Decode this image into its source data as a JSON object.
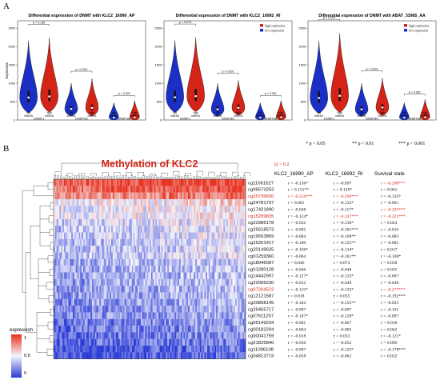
{
  "panel_a_label": "A",
  "panel_b_label": "B",
  "chart_data": [
    {
      "type": "violin",
      "title": "Differential expression of DNMT with KLC2_16990_AP",
      "ylabel": "Expression",
      "yticks": [
        "2500",
        "2000",
        "1500",
        "1000",
        "500",
        "0"
      ],
      "ylim": [
        0,
        2700
      ],
      "categories": [
        "DNMT1",
        "DNMT3A",
        "DNMT3B"
      ],
      "group_labels": [
        "low\nm6EKA",
        "high\nm6EKA"
      ],
      "pvalues": [
        "p = 0.135",
        "p < 0.001",
        "p < 0.001"
      ],
      "legend": [],
      "series": [
        {
          "name": "low",
          "medians": [
            610,
            300,
            70
          ],
          "q1": [
            480,
            240,
            40
          ],
          "q3": [
            790,
            380,
            120
          ]
        },
        {
          "name": "high",
          "medians": [
            640,
            330,
            80
          ],
          "q1": [
            510,
            260,
            50
          ],
          "q3": [
            830,
            420,
            140
          ]
        }
      ]
    },
    {
      "type": "violin",
      "title": "Differential expression of DNMT with KLC2_16992_RI",
      "ylabel": "",
      "yticks": [
        "2500",
        "2000",
        "1500",
        "1000",
        "500",
        "0"
      ],
      "ylim": [
        0,
        2700
      ],
      "categories": [
        "DNMT1",
        "DNMT3A",
        "DNMT3B"
      ],
      "group_labels": [
        "low\nm6EKA",
        "high\nm6EKA"
      ],
      "pvalues": [
        "p = 0.073",
        "p < 0.001",
        "p < 0.001"
      ],
      "legend": [
        "high expression",
        "low expression"
      ],
      "series": [
        {
          "name": "low",
          "medians": [
            620,
            290,
            70
          ],
          "q1": [
            490,
            230,
            40
          ],
          "q3": [
            800,
            370,
            120
          ]
        },
        {
          "name": "high",
          "medians": [
            650,
            330,
            85
          ],
          "q1": [
            520,
            270,
            50
          ],
          "q3": [
            840,
            420,
            140
          ]
        }
      ]
    },
    {
      "type": "violin",
      "title": "Differential expression of DNMT with ABAT_33965_AA",
      "ylabel": "",
      "yticks": [
        "2500",
        "2000",
        "1500",
        "1000",
        "500",
        "0"
      ],
      "ylim": [
        0,
        2700
      ],
      "categories": [
        "DNMT1",
        "DNMT3A",
        "DNMT3B"
      ],
      "group_labels": [
        "low\nm6EKA",
        "high\nm6EKA"
      ],
      "pvalues": [
        "p < 0.001",
        "p < 0.001",
        "p < 0.001"
      ],
      "legend": [
        "high expression",
        "low expression"
      ],
      "series": [
        {
          "name": "low",
          "medians": [
            600,
            290,
            70
          ],
          "q1": [
            470,
            230,
            40
          ],
          "q3": [
            780,
            370,
            120
          ]
        },
        {
          "name": "high",
          "medians": [
            660,
            340,
            85
          ],
          "q1": [
            520,
            270,
            55
          ],
          "q3": [
            860,
            430,
            150
          ]
        }
      ]
    },
    {
      "type": "heatmap",
      "title": "Methylation of KLC2",
      "threshold_label": "|r| > 0.2",
      "significance": [
        "* p < 0.05",
        "** p < 0.01",
        "*** p < 0.001"
      ],
      "colorbar_label": "expression",
      "colorbar_ticks": [
        "1",
        "0.5",
        "0"
      ],
      "column_headers": [
        "KLC2_16990_AP",
        "KLC2_16992_RI",
        "Survival state"
      ],
      "rows": [
        {
          "probe": "cg11661527",
          "highlight": false,
          "r": [
            "r = -0.136*",
            "r = -0.097",
            "r = -0.208***"
          ],
          "red": [
            false,
            false,
            true
          ]
        },
        {
          "probe": "cg06573253",
          "highlight": false,
          "r": [
            "r = 0.151**",
            "r = 0.126*",
            "r = 0.061"
          ],
          "red": [
            false,
            false,
            false
          ]
        },
        {
          "probe": "cg25736830",
          "highlight": true,
          "r": [
            "r = -0.256***",
            "r = -0.290***",
            "r = -0.135*"
          ],
          "red": [
            true,
            true,
            false
          ]
        },
        {
          "probe": "cg24781737",
          "highlight": false,
          "r": [
            "r = 0.001",
            "r = -0.132*",
            "r = -0.001"
          ],
          "red": [
            false,
            false,
            false
          ]
        },
        {
          "probe": "cg17421890",
          "highlight": false,
          "r": [
            "r = -0.048",
            "r = -0.117*",
            "r = -0.205***"
          ],
          "red": [
            false,
            false,
            true
          ]
        },
        {
          "probe": "cg15299835",
          "highlight": true,
          "r": [
            "r = -0.124*",
            "r = -0.247***",
            "r = -0.221***"
          ],
          "red": [
            false,
            true,
            true
          ]
        },
        {
          "probe": "cg22986178",
          "highlight": false,
          "r": [
            "r = -0.032",
            "r = -0.136*",
            "r = 0.024"
          ],
          "red": [
            false,
            false,
            false
          ]
        },
        {
          "probe": "cg25618573",
          "highlight": false,
          "r": [
            "r = -0.095",
            "r = -0.181***",
            "r = -0.016"
          ],
          "red": [
            false,
            false,
            false
          ]
        },
        {
          "probe": "cg19553869",
          "highlight": false,
          "r": [
            "r = -0.084",
            "r = -0.168**",
            "r = -0.083"
          ],
          "red": [
            false,
            false,
            false
          ]
        },
        {
          "probe": "cg15201417",
          "highlight": false,
          "r": [
            "r = -0.100",
            "r = -0.155**",
            "r = -0.081"
          ],
          "red": [
            false,
            false,
            false
          ]
        },
        {
          "probe": "cg20149625",
          "highlight": false,
          "r": [
            "r = -0.106*",
            "r = -0.134*",
            "r = 0.017"
          ],
          "red": [
            false,
            false,
            false
          ]
        },
        {
          "probe": "cg01259360",
          "highlight": false,
          "r": [
            "r = -0.064",
            "r = -0.161**",
            "r = -0.108*"
          ],
          "red": [
            false,
            false,
            false
          ]
        },
        {
          "probe": "cg18046087",
          "highlight": false,
          "r": [
            "r = 0.046",
            "r = 0.074",
            "r = 0.058"
          ],
          "red": [
            false,
            false,
            false
          ]
        },
        {
          "probe": "cg01280128",
          "highlight": false,
          "r": [
            "r = -0.046",
            "r = -0.048",
            "r = 0.035"
          ],
          "red": [
            false,
            false,
            false
          ]
        },
        {
          "probe": "cg14442997",
          "highlight": false,
          "r": [
            "r = -0.127*",
            "r = -0.135*",
            "r = -0.067"
          ],
          "red": [
            false,
            false,
            false
          ]
        },
        {
          "probe": "cg22066230",
          "highlight": false,
          "r": [
            "r = -0.032",
            "r = -0.049",
            "r = -0.048"
          ],
          "red": [
            false,
            false,
            false
          ]
        },
        {
          "probe": "cg07264522",
          "highlight": true,
          "r": [
            "r = -0.115*",
            "r = -0.135*",
            "r = -0.277***"
          ],
          "red": [
            false,
            false,
            true
          ]
        },
        {
          "probe": "cg12121587",
          "highlight": false,
          "r": [
            "r = 0.018",
            "r = 0.055",
            "r = -0.192***"
          ],
          "red": [
            false,
            false,
            false
          ]
        },
        {
          "probe": "cg20808145",
          "highlight": false,
          "r": [
            "r = -0.104",
            "r = -0.155**",
            "r = -0.025"
          ],
          "red": [
            false,
            false,
            false
          ]
        },
        {
          "probe": "cg26455717",
          "highlight": false,
          "r": [
            "r = -0.097",
            "r = -0.097",
            "r = -0.101"
          ],
          "red": [
            false,
            false,
            false
          ]
        },
        {
          "probe": "cg07611257",
          "highlight": false,
          "r": [
            "r = -0.107*",
            "r = -0.120*",
            "r = -0.097"
          ],
          "red": [
            false,
            false,
            false
          ]
        },
        {
          "probe": "cg05149234",
          "highlight": false,
          "r": [
            "r = -0.001",
            "r = -0.067",
            "r = 0.018"
          ],
          "red": [
            false,
            false,
            false
          ]
        },
        {
          "probe": "cg00182294",
          "highlight": false,
          "r": [
            "r = -0.004",
            "r = -0.005",
            "r = 0.062"
          ],
          "red": [
            false,
            false,
            false
          ]
        },
        {
          "probe": "cg00041759",
          "highlight": false,
          "r": [
            "r = -0.018",
            "r = 0.033",
            "r = -0.121*"
          ],
          "red": [
            false,
            false,
            false
          ]
        },
        {
          "probe": "cg21825840",
          "highlight": false,
          "r": [
            "r = -0.030",
            "r = -0.052",
            "r = 0.096"
          ],
          "red": [
            false,
            false,
            false
          ]
        },
        {
          "probe": "cg11096108",
          "highlight": false,
          "r": [
            "r = -0.097",
            "r = -0.123*",
            "r = -0.178***"
          ],
          "red": [
            false,
            false,
            false
          ]
        },
        {
          "probe": "cg04813719",
          "highlight": false,
          "r": [
            "r = -0.058",
            "r = -0.062",
            "r = 0.032"
          ],
          "red": [
            false,
            false,
            false
          ]
        }
      ]
    }
  ],
  "colors": {
    "low": "#1b2fc4",
    "high": "#d42418",
    "highlight_text": "#d42418",
    "hot": "#e8321f",
    "cold": "#2a3bd6",
    "mid": "#f4f4fb"
  }
}
